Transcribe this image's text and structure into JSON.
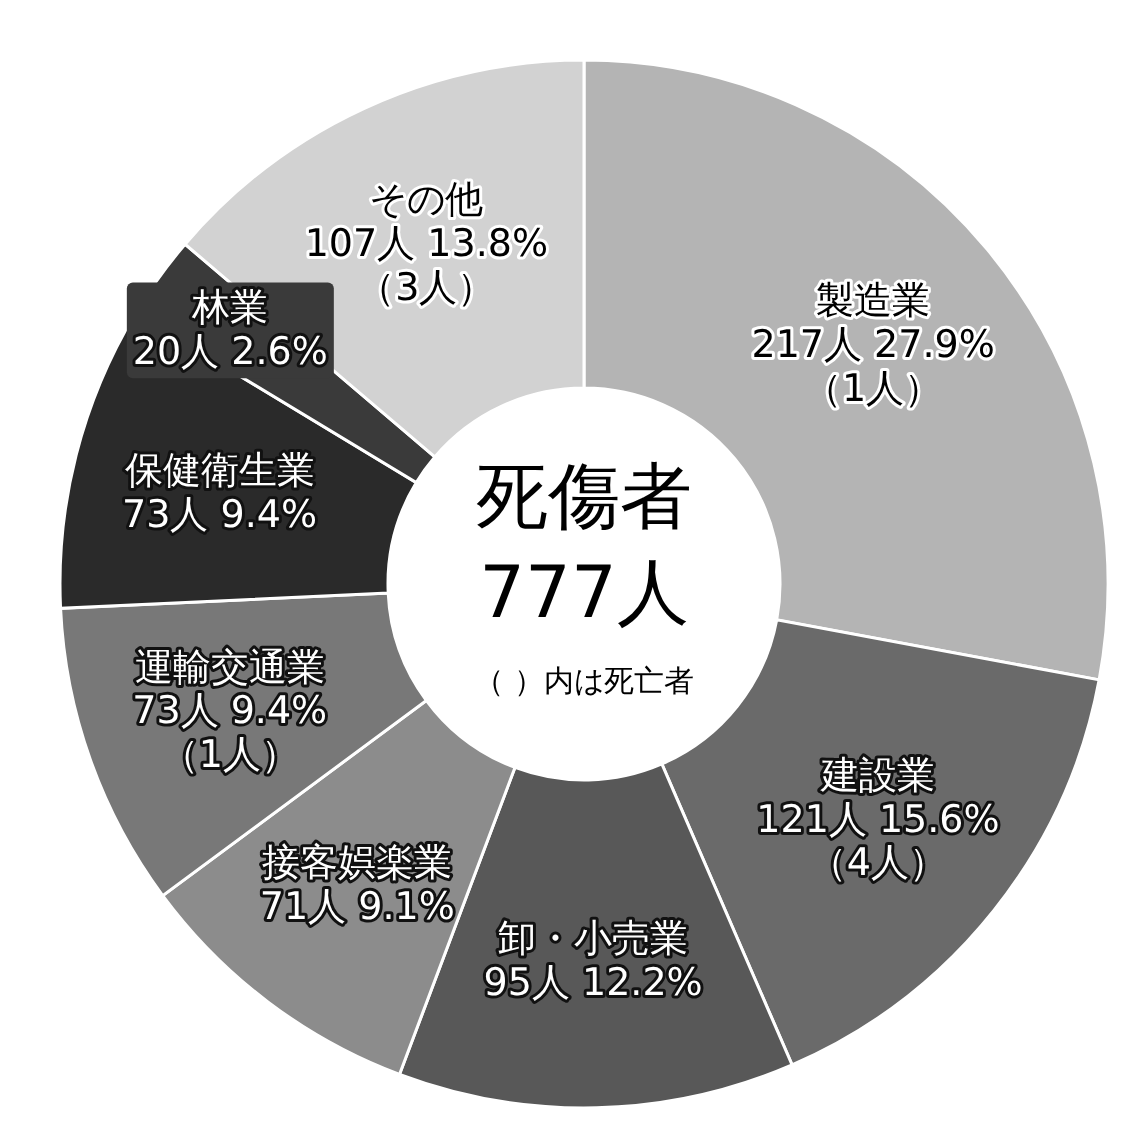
{
  "chart_data": {
    "type": "donut",
    "title": "死傷者",
    "subtitle": "777人",
    "annotations": [
      "（ ）内は死亡者"
    ],
    "categories": [
      "製造業",
      "建設業",
      "卸・小売業",
      "接客娯楽業",
      "運輸交通業",
      "保健衛生業",
      "林業",
      "その他"
    ],
    "values": [
      217,
      121,
      95,
      71,
      73,
      73,
      20,
      107
    ],
    "value_labels": [
      "217人 27.9%\n（1人）",
      "121人 15.6%\n（4人）",
      "95人 12.2%",
      "71人 9.1%",
      "73人 9.4%\n（1人）",
      "73人 9.4%",
      "20人 2.6%",
      "107人 13.8%\n（3人）"
    ],
    "colors": [
      "#b4b4b4",
      "#6a6a6a",
      "#585858",
      "#8c8c8c",
      "#787878",
      "#2a2a2a",
      "#3a3a3a",
      "#d2d2d2"
    ]
  }
}
